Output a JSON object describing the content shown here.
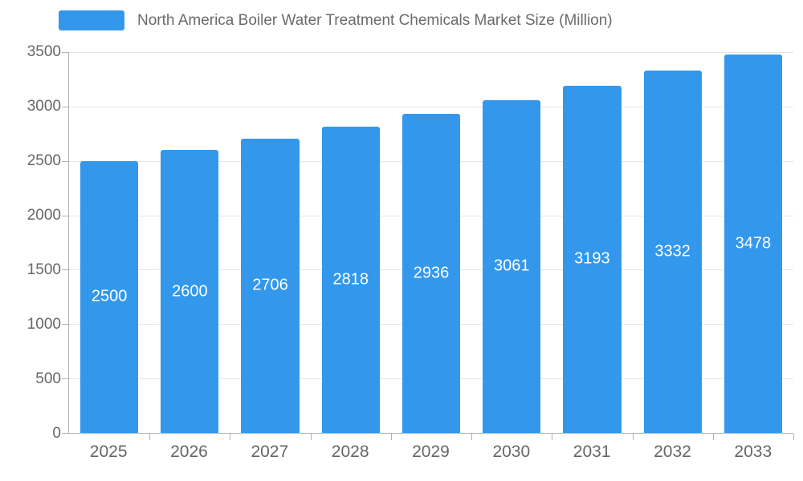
{
  "legend": {
    "title": "North America Boiler Water Treatment Chemicals Market Size (Million)"
  },
  "colors": {
    "bar": "#3398EC",
    "bar_label_text": "#ffffff",
    "axis_text": "#666666",
    "grid": "#e6e6e6",
    "axis_line": "#b3b3b3",
    "legend_text": "#6b6b6b"
  },
  "chart_data": {
    "type": "bar",
    "title": "North America Boiler Water Treatment Chemicals Market Size (Million)",
    "categories": [
      "2025",
      "2026",
      "2027",
      "2028",
      "2029",
      "2030",
      "2031",
      "2032",
      "2033"
    ],
    "values": [
      2500,
      2600,
      2706,
      2818,
      2936,
      3061,
      3193,
      3332,
      3478
    ],
    "xlabel": "",
    "ylabel": "",
    "ylim": [
      0,
      3500
    ],
    "yticks": [
      0,
      500,
      1000,
      1500,
      2000,
      2500,
      3000,
      3500
    ],
    "grid": true,
    "legend_position": "top",
    "value_labels": "centered-inside-bars"
  }
}
